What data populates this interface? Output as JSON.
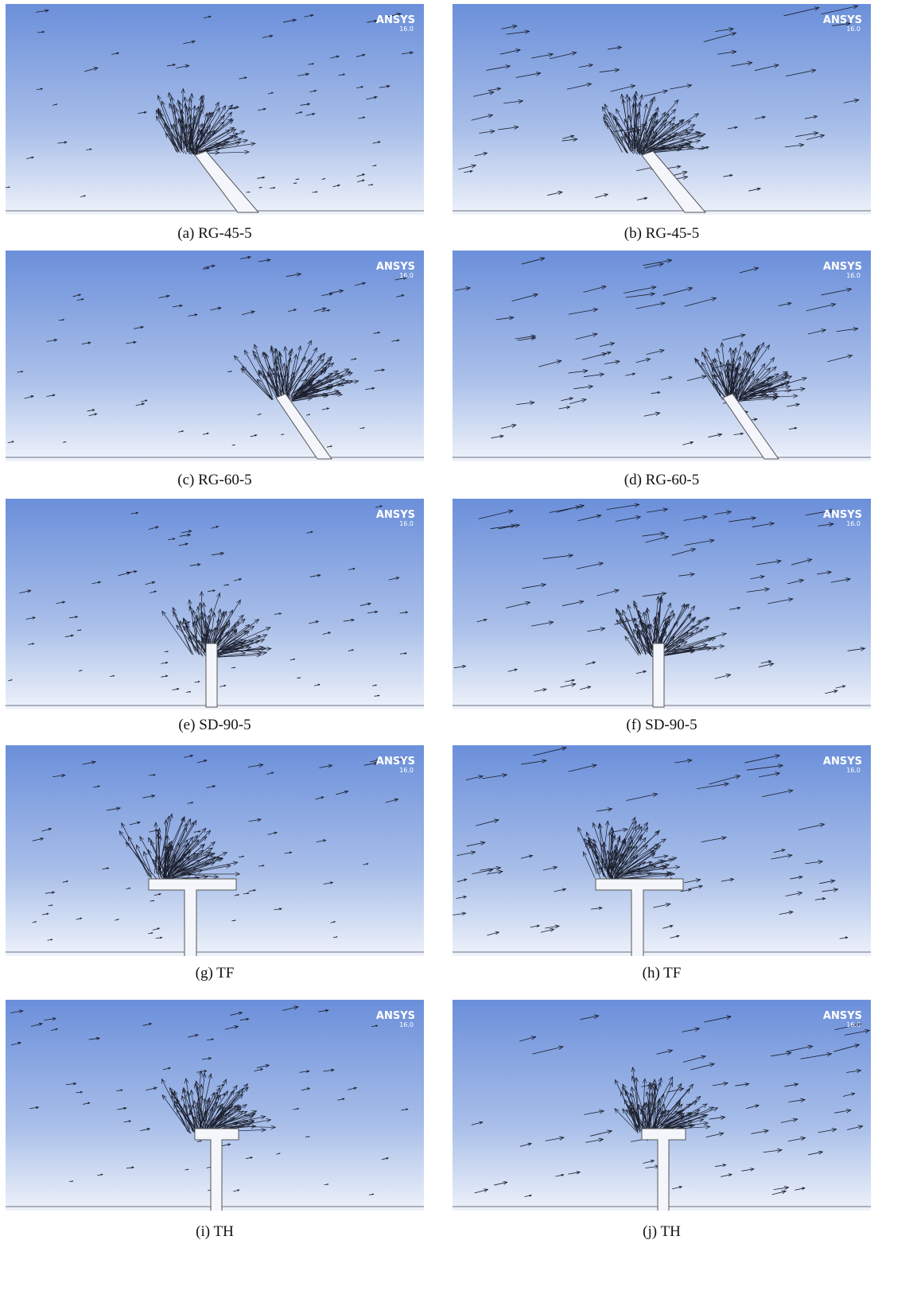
{
  "panels": [
    {
      "logo": "ANSYS",
      "version": "16.0",
      "caption": "(a) RG-45-5"
    },
    {
      "logo": "ANSYS",
      "version": "16.0",
      "caption": "(b) RG-45-5"
    },
    {
      "logo": "ANSYS",
      "version": "16.0",
      "caption": "(c) RG-60-5"
    },
    {
      "logo": "ANSYS",
      "version": "16.0",
      "caption": "(d) RG-60-5"
    },
    {
      "logo": "ANSYS",
      "version": "16.0",
      "caption": "(e) SD-90-5"
    },
    {
      "logo": "ANSYS",
      "version": "16.0",
      "caption": "(f) SD-90-5"
    },
    {
      "logo": "ANSYS",
      "version": "16.0",
      "caption": "(g) TF"
    },
    {
      "logo": "ANSYS",
      "version": "16.0",
      "caption": "(h) TF"
    },
    {
      "logo": "ANSYS",
      "version": "16.0",
      "caption": "(i) TH"
    },
    {
      "logo": "ANSYS",
      "version": "16.0",
      "caption": "(j) TH"
    }
  ]
}
